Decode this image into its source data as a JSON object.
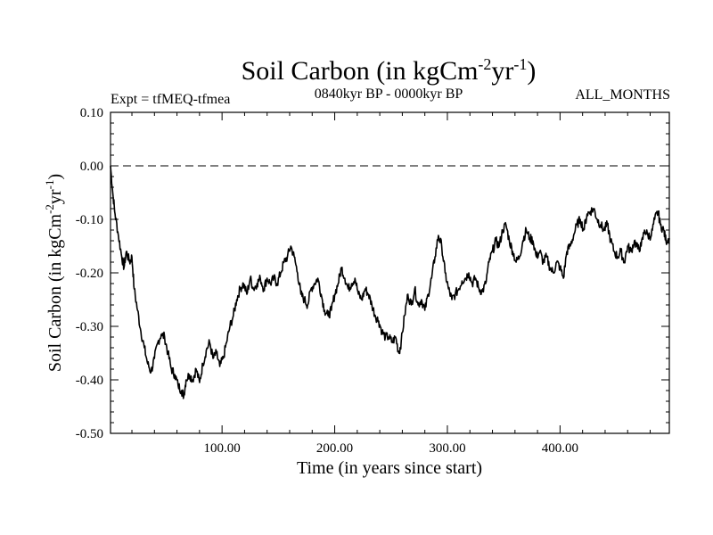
{
  "chart_data": {
    "type": "line",
    "title_main": "Soil Carbon (in kgCm",
    "title_sup1": "-2",
    "title_mid": "yr",
    "title_sup2": "-1",
    "title_end": ")",
    "subtitle_left": "Expt = tfMEQ-tfmea",
    "subtitle_center": "0840kyr BP - 0000kyr BP",
    "subtitle_right": "ALL_MONTHS",
    "xlabel": "Time (in years since start)",
    "ylabel_main": "Soil Carbon (in kgCm",
    "ylabel_sup1": "-2",
    "ylabel_mid": "yr",
    "ylabel_sup2": "-1",
    "ylabel_end": ")",
    "xlim": [
      1,
      497
    ],
    "ylim": [
      -0.5,
      0.1
    ],
    "xticks": [
      100,
      200,
      300,
      400
    ],
    "xtick_labels": [
      "100.00",
      "200.00",
      "300.00",
      "400.00"
    ],
    "yticks": [
      0.1,
      0.0,
      -0.1,
      -0.2,
      -0.3,
      -0.4,
      -0.5
    ],
    "ytick_labels": [
      "0.10",
      "0.00",
      "-0.10",
      "-0.20",
      "-0.30",
      "-0.40",
      "-0.50"
    ],
    "reference_line": {
      "y": 0.0,
      "style": "dashed"
    },
    "series": [
      {
        "name": "Soil Carbon",
        "color": "#000000",
        "points": [
          [
            1,
            0.0
          ],
          [
            3,
            -0.05
          ],
          [
            5,
            -0.09
          ],
          [
            8,
            -0.13
          ],
          [
            11,
            -0.17
          ],
          [
            13,
            -0.19
          ],
          [
            15,
            -0.16
          ],
          [
            18,
            -0.18
          ],
          [
            20,
            -0.17
          ],
          [
            22,
            -0.23
          ],
          [
            25,
            -0.27
          ],
          [
            28,
            -0.31
          ],
          [
            31,
            -0.34
          ],
          [
            34,
            -0.37
          ],
          [
            37,
            -0.385
          ],
          [
            40,
            -0.36
          ],
          [
            43,
            -0.33
          ],
          [
            46,
            -0.315
          ],
          [
            49,
            -0.32
          ],
          [
            52,
            -0.35
          ],
          [
            55,
            -0.38
          ],
          [
            58,
            -0.39
          ],
          [
            61,
            -0.41
          ],
          [
            64,
            -0.42
          ],
          [
            66,
            -0.43
          ],
          [
            68,
            -0.4
          ],
          [
            71,
            -0.39
          ],
          [
            74,
            -0.4
          ],
          [
            77,
            -0.38
          ],
          [
            80,
            -0.405
          ],
          [
            83,
            -0.37
          ],
          [
            86,
            -0.345
          ],
          [
            89,
            -0.33
          ],
          [
            92,
            -0.36
          ],
          [
            95,
            -0.35
          ],
          [
            98,
            -0.375
          ],
          [
            101,
            -0.36
          ],
          [
            104,
            -0.33
          ],
          [
            107,
            -0.3
          ],
          [
            110,
            -0.28
          ],
          [
            113,
            -0.25
          ],
          [
            116,
            -0.23
          ],
          [
            119,
            -0.22
          ],
          [
            122,
            -0.24
          ],
          [
            125,
            -0.21
          ],
          [
            128,
            -0.23
          ],
          [
            131,
            -0.22
          ],
          [
            134,
            -0.21
          ],
          [
            137,
            -0.23
          ],
          [
            140,
            -0.21
          ],
          [
            143,
            -0.22
          ],
          [
            146,
            -0.21
          ],
          [
            149,
            -0.22
          ],
          [
            152,
            -0.2
          ],
          [
            155,
            -0.18
          ],
          [
            158,
            -0.17
          ],
          [
            161,
            -0.15
          ],
          [
            164,
            -0.17
          ],
          [
            167,
            -0.2
          ],
          [
            170,
            -0.24
          ],
          [
            173,
            -0.25
          ],
          [
            176,
            -0.26
          ],
          [
            179,
            -0.23
          ],
          [
            182,
            -0.22
          ],
          [
            185,
            -0.21
          ],
          [
            188,
            -0.24
          ],
          [
            191,
            -0.27
          ],
          [
            194,
            -0.28
          ],
          [
            197,
            -0.27
          ],
          [
            200,
            -0.24
          ],
          [
            203,
            -0.22
          ],
          [
            206,
            -0.19
          ],
          [
            209,
            -0.21
          ],
          [
            212,
            -0.23
          ],
          [
            215,
            -0.22
          ],
          [
            218,
            -0.21
          ],
          [
            221,
            -0.24
          ],
          [
            224,
            -0.25
          ],
          [
            227,
            -0.23
          ],
          [
            230,
            -0.24
          ],
          [
            233,
            -0.26
          ],
          [
            236,
            -0.28
          ],
          [
            239,
            -0.29
          ],
          [
            242,
            -0.31
          ],
          [
            245,
            -0.32
          ],
          [
            248,
            -0.32
          ],
          [
            251,
            -0.33
          ],
          [
            254,
            -0.32
          ],
          [
            257,
            -0.35
          ],
          [
            259,
            -0.33
          ],
          [
            262,
            -0.28
          ],
          [
            265,
            -0.24
          ],
          [
            268,
            -0.26
          ],
          [
            271,
            -0.23
          ],
          [
            274,
            -0.26
          ],
          [
            277,
            -0.25
          ],
          [
            280,
            -0.27
          ],
          [
            283,
            -0.24
          ],
          [
            286,
            -0.21
          ],
          [
            289,
            -0.17
          ],
          [
            292,
            -0.13
          ],
          [
            295,
            -0.15
          ],
          [
            298,
            -0.2
          ],
          [
            301,
            -0.23
          ],
          [
            304,
            -0.25
          ],
          [
            307,
            -0.24
          ],
          [
            310,
            -0.23
          ],
          [
            313,
            -0.215
          ],
          [
            316,
            -0.21
          ],
          [
            319,
            -0.2
          ],
          [
            322,
            -0.22
          ],
          [
            325,
            -0.21
          ],
          [
            328,
            -0.23
          ],
          [
            331,
            -0.235
          ],
          [
            334,
            -0.22
          ],
          [
            337,
            -0.18
          ],
          [
            340,
            -0.16
          ],
          [
            343,
            -0.14
          ],
          [
            346,
            -0.15
          ],
          [
            349,
            -0.12
          ],
          [
            352,
            -0.11
          ],
          [
            355,
            -0.14
          ],
          [
            358,
            -0.16
          ],
          [
            361,
            -0.18
          ],
          [
            364,
            -0.17
          ],
          [
            367,
            -0.14
          ],
          [
            370,
            -0.12
          ],
          [
            373,
            -0.135
          ],
          [
            376,
            -0.14
          ],
          [
            379,
            -0.17
          ],
          [
            382,
            -0.16
          ],
          [
            385,
            -0.18
          ],
          [
            388,
            -0.17
          ],
          [
            391,
            -0.19
          ],
          [
            394,
            -0.2
          ],
          [
            397,
            -0.18
          ],
          [
            400,
            -0.19
          ],
          [
            403,
            -0.21
          ],
          [
            406,
            -0.16
          ],
          [
            409,
            -0.15
          ],
          [
            412,
            -0.13
          ],
          [
            415,
            -0.11
          ],
          [
            418,
            -0.1
          ],
          [
            421,
            -0.12
          ],
          [
            424,
            -0.09
          ],
          [
            427,
            -0.085
          ],
          [
            430,
            -0.08
          ],
          [
            433,
            -0.1
          ],
          [
            436,
            -0.11
          ],
          [
            439,
            -0.12
          ],
          [
            442,
            -0.11
          ],
          [
            445,
            -0.14
          ],
          [
            448,
            -0.16
          ],
          [
            451,
            -0.17
          ],
          [
            454,
            -0.16
          ],
          [
            457,
            -0.18
          ],
          [
            460,
            -0.15
          ],
          [
            463,
            -0.16
          ],
          [
            466,
            -0.14
          ],
          [
            469,
            -0.155
          ],
          [
            472,
            -0.15
          ],
          [
            475,
            -0.12
          ],
          [
            478,
            -0.13
          ],
          [
            481,
            -0.13
          ],
          [
            484,
            -0.1
          ],
          [
            487,
            -0.085
          ],
          [
            489,
            -0.11
          ],
          [
            492,
            -0.12
          ],
          [
            494,
            -0.14
          ],
          [
            497,
            -0.135
          ]
        ]
      }
    ]
  }
}
